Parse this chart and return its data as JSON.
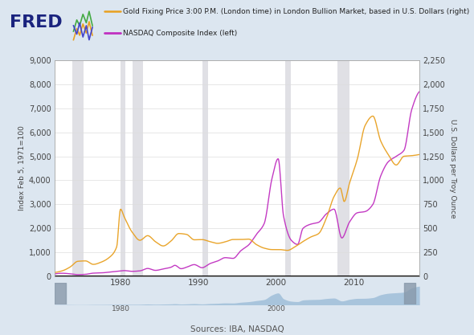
{
  "background_color": "#dce6f0",
  "plot_bg_color": "#ffffff",
  "legend_line1": "Gold Fixing Price 3:00 P.M. (London time) in London Bullion Market, based in U.S. Dollars (right)",
  "legend_line2": "NASDAQ Composite Index (left)",
  "gold_color": "#e8a020",
  "nasdaq_color": "#c030c0",
  "ylabel_left": "Index Feb 5, 1971=100",
  "ylabel_right": "U.S. Dollars per Troy Ounce",
  "source_text": "Sources: IBA, NASDAQ",
  "ylim_left": [
    0,
    9000
  ],
  "ylim_right": [
    0,
    2250
  ],
  "yticks_left": [
    0,
    1000,
    2000,
    3000,
    4000,
    5000,
    6000,
    7000,
    8000,
    9000
  ],
  "yticks_right": [
    0,
    250,
    500,
    750,
    1000,
    1250,
    1500,
    1750,
    2000,
    2250
  ],
  "recession_bands": [
    [
      1973.8,
      1975.2
    ],
    [
      1980.0,
      1980.6
    ],
    [
      1981.6,
      1982.9
    ],
    [
      1990.6,
      1991.3
    ],
    [
      2001.2,
      2001.9
    ],
    [
      2007.9,
      2009.5
    ]
  ],
  "tick_label_color": "#444444",
  "grid_color": "#dddddd",
  "xticks": [
    1980,
    1990,
    2000,
    2010
  ],
  "xlim": [
    1971.5,
    2018.5
  ]
}
